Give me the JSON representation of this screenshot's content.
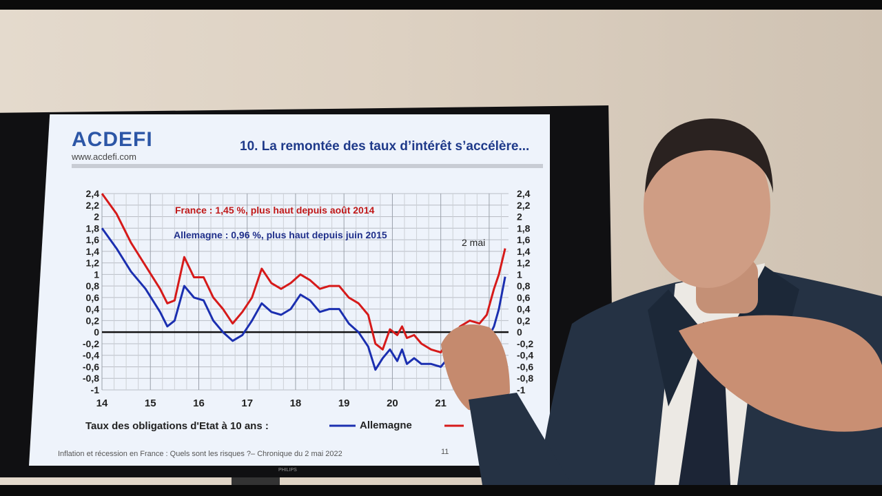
{
  "slide": {
    "logo": "ACDEFI",
    "logo_url": "www.acdefi.com",
    "title": "10. La remontée des taux d’intérêt s’accélère...",
    "footer": "Inflation et récession en France : Quels sont les risques ?– Chronique du 2 mai 2022",
    "page_number": "11",
    "legend_label": "Taux des obligations d'Etat à 10 ans :",
    "legend_series_1": "Allemagne",
    "tv_brand": "PHILIPS"
  },
  "chart_data": {
    "type": "line",
    "annotations": [
      "France : 1,45 %, plus haut depuis août 2014",
      "Allemagne : 0,96 %, plus haut depuis juin 2015",
      "2 mai"
    ],
    "x_tick_labels": [
      "14",
      "15",
      "16",
      "17",
      "18",
      "19",
      "20",
      "21"
    ],
    "y_tick_labels": [
      "2,4",
      "2,2",
      "2",
      "1,8",
      "1,6",
      "1,4",
      "1,2",
      "1",
      "0,8",
      "0,6",
      "0,4",
      "0,2",
      "0",
      "-0,2",
      "-0,4",
      "-0,6",
      "-0,8",
      "-1"
    ],
    "xlim": [
      2014,
      2022.4
    ],
    "ylim": [
      -1,
      2.4
    ],
    "grid": true,
    "series": [
      {
        "name": "France",
        "color": "#d61a1a",
        "x": [
          2014.0,
          2014.3,
          2014.6,
          2014.9,
          2015.2,
          2015.35,
          2015.5,
          2015.7,
          2015.9,
          2016.1,
          2016.3,
          2016.5,
          2016.7,
          2016.9,
          2017.1,
          2017.3,
          2017.5,
          2017.7,
          2017.9,
          2018.1,
          2018.3,
          2018.5,
          2018.7,
          2018.9,
          2019.1,
          2019.3,
          2019.5,
          2019.65,
          2019.8,
          2019.95,
          2020.1,
          2020.2,
          2020.3,
          2020.45,
          2020.6,
          2020.8,
          2021.0,
          2021.2,
          2021.4,
          2021.6,
          2021.8,
          2021.95,
          2022.1,
          2022.2,
          2022.33
        ],
        "y": [
          2.4,
          2.05,
          1.55,
          1.15,
          0.75,
          0.5,
          0.55,
          1.3,
          0.95,
          0.95,
          0.6,
          0.4,
          0.15,
          0.35,
          0.6,
          1.1,
          0.85,
          0.75,
          0.85,
          1.0,
          0.9,
          0.75,
          0.8,
          0.8,
          0.6,
          0.5,
          0.3,
          -0.2,
          -0.3,
          0.05,
          -0.05,
          0.1,
          -0.1,
          -0.05,
          -0.2,
          -0.3,
          -0.35,
          -0.1,
          0.1,
          0.2,
          0.15,
          0.3,
          0.75,
          1.0,
          1.45
        ]
      },
      {
        "name": "Allemagne",
        "color": "#1b2fb0",
        "x": [
          2014.0,
          2014.3,
          2014.6,
          2014.9,
          2015.2,
          2015.35,
          2015.5,
          2015.7,
          2015.9,
          2016.1,
          2016.3,
          2016.5,
          2016.7,
          2016.9,
          2017.1,
          2017.3,
          2017.5,
          2017.7,
          2017.9,
          2018.1,
          2018.3,
          2018.5,
          2018.7,
          2018.9,
          2019.1,
          2019.3,
          2019.5,
          2019.65,
          2019.8,
          2019.95,
          2020.1,
          2020.2,
          2020.3,
          2020.45,
          2020.6,
          2020.8,
          2021.0,
          2021.2,
          2021.4,
          2021.6,
          2021.8,
          2021.95,
          2022.1,
          2022.2,
          2022.33
        ],
        "y": [
          1.8,
          1.45,
          1.05,
          0.75,
          0.35,
          0.1,
          0.2,
          0.8,
          0.6,
          0.55,
          0.2,
          0.0,
          -0.15,
          -0.05,
          0.2,
          0.5,
          0.35,
          0.3,
          0.4,
          0.65,
          0.55,
          0.35,
          0.4,
          0.4,
          0.15,
          0.0,
          -0.25,
          -0.65,
          -0.45,
          -0.3,
          -0.5,
          -0.3,
          -0.55,
          -0.45,
          -0.55,
          -0.55,
          -0.6,
          -0.4,
          -0.2,
          -0.15,
          -0.2,
          -0.15,
          0.1,
          0.4,
          0.96
        ]
      }
    ]
  }
}
